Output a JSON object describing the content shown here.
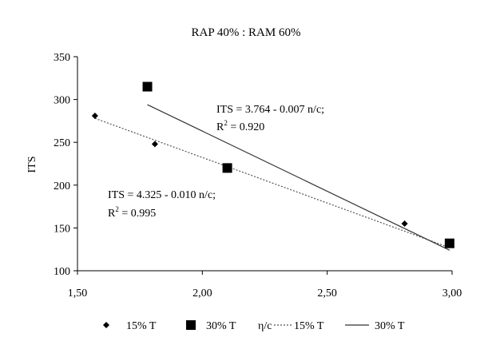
{
  "chart_data": {
    "type": "scatter",
    "title": "RAP 40% : RAM 60%",
    "xlabel": "",
    "ylabel": "ITS",
    "xlim": [
      1.5,
      3.0
    ],
    "ylim": [
      100,
      350
    ],
    "x_ticks": [
      "1,50",
      "2,00",
      "2,50",
      "3,00"
    ],
    "x_tick_values": [
      1.5,
      2.0,
      2.5,
      3.0
    ],
    "y_ticks": [
      "100",
      "150",
      "200",
      "250",
      "300",
      "350"
    ],
    "y_tick_values": [
      100,
      150,
      200,
      250,
      300,
      350
    ],
    "grid": false,
    "legend_position": "bottom",
    "series": [
      {
        "name": "15% T",
        "marker": "diamond",
        "points": [
          {
            "x": 1.57,
            "y": 281
          },
          {
            "x": 1.81,
            "y": 248
          },
          {
            "x": 2.1,
            "y": 222
          },
          {
            "x": 2.81,
            "y": 155
          },
          {
            "x": 2.99,
            "y": 131
          }
        ]
      },
      {
        "name": "30% T",
        "marker": "square",
        "points": [
          {
            "x": 1.78,
            "y": 315
          },
          {
            "x": 2.1,
            "y": 220
          },
          {
            "x": 2.99,
            "y": 132
          }
        ]
      }
    ],
    "trendlines": [
      {
        "name": "15% T",
        "style": "dotted",
        "x": [
          1.57,
          2.99
        ],
        "y": [
          278,
          127
        ]
      },
      {
        "name": "30% T",
        "style": "solid",
        "x": [
          1.78,
          2.99
        ],
        "y": [
          294,
          124
        ]
      }
    ],
    "annotations": [
      {
        "id": "eq30",
        "line1": "ITS = 3.764 - 0.007 n/c;",
        "r2_label": "R",
        "r2_sup": "2",
        "r2_value": " = 0.920"
      },
      {
        "id": "eq15",
        "line1": "ITS = 4.325 - 0.010 n/c;",
        "r2_label": "R",
        "r2_sup": "2",
        "r2_value": " = 0.995"
      }
    ],
    "legend": {
      "items": [
        {
          "label": "15% T",
          "symbol": "diamond"
        },
        {
          "label": "30% T",
          "symbol": "square"
        },
        {
          "label": "η/c",
          "symbol": "none"
        },
        {
          "label": "15% T",
          "symbol": "dotted-line"
        },
        {
          "label": "30% T",
          "symbol": "solid-line"
        }
      ]
    },
    "colors": {
      "marker": "#000000",
      "line_30": "#333333",
      "line_15": "#555555",
      "axis": "#000000"
    }
  }
}
